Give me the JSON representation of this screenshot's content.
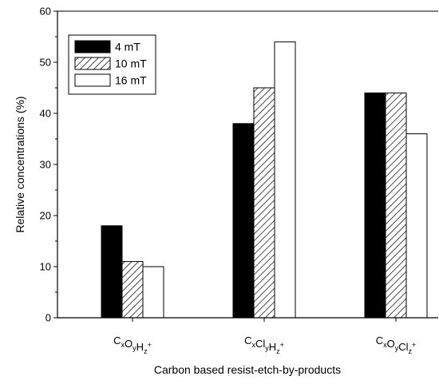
{
  "chart_data": {
    "type": "bar",
    "xlabel": "Carbon based resist-etch-by-products",
    "ylabel": "Relative concentrations (%)",
    "ylim": [
      0,
      60
    ],
    "yticks": [
      0,
      10,
      20,
      30,
      40,
      50,
      60
    ],
    "categories": [
      {
        "label": "CxOyHz+",
        "parts": [
          [
            "C",
            "x"
          ],
          [
            "O",
            "y"
          ],
          [
            "H",
            "z"
          ]
        ],
        "charge": "+"
      },
      {
        "label": "CxClyHz+",
        "parts": [
          [
            "C",
            "x"
          ],
          [
            "Cl",
            "y"
          ],
          [
            "H",
            "z"
          ]
        ],
        "charge": "+"
      },
      {
        "label": "CxOyClz+",
        "parts": [
          [
            "C",
            "x"
          ],
          [
            "O",
            "y"
          ],
          [
            "Cl",
            "z"
          ]
        ],
        "charge": "+"
      }
    ],
    "series": [
      {
        "name": "4 mT",
        "fill": "solid-black",
        "values": [
          18,
          38,
          44
        ]
      },
      {
        "name": "10 mT",
        "fill": "diagonal-hatch",
        "values": [
          11,
          45,
          44
        ]
      },
      {
        "name": "16 mT",
        "fill": "white",
        "values": [
          10,
          54,
          36
        ]
      }
    ],
    "legend_position": "top-left",
    "grid": false,
    "colors": {
      "axis": "#000000",
      "bar_stroke": "#000000",
      "solid": "#000000",
      "open": "#ffffff"
    }
  }
}
